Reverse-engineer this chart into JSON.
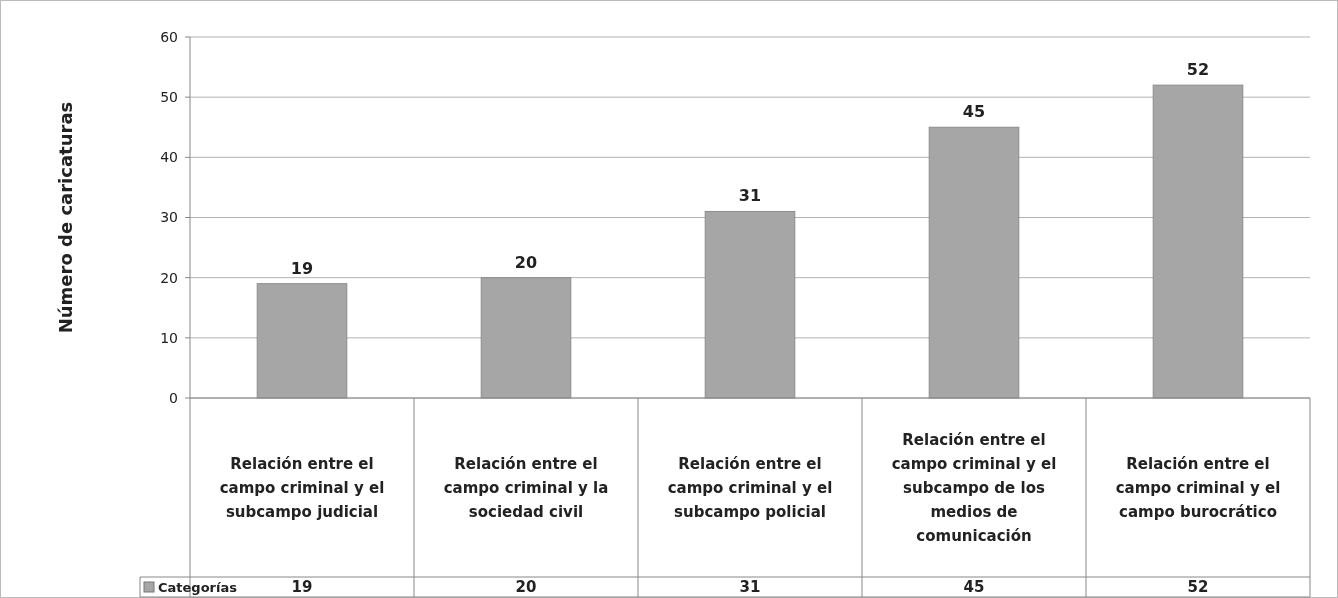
{
  "chart_data": {
    "type": "bar",
    "ylabel": "Número de caricaturas",
    "categories": [
      "Relación entre el campo criminal y el subcampo judicial",
      "Relación entre el campo criminal y la sociedad civil",
      "Relación entre el campo criminal y el subcampo policial",
      "Relación entre el campo criminal y el subcampo de los medios de comunicación",
      "Relación entre el campo criminal y el campo burocrático"
    ],
    "series": [
      {
        "name": "Categorías",
        "color": "#a6a6a6",
        "values": [
          19,
          20,
          31,
          45,
          52
        ]
      }
    ],
    "annotations": [
      "19",
      "20",
      "31",
      "45",
      "52"
    ],
    "ylim": [
      0,
      60
    ],
    "yticks": [
      0,
      10,
      20,
      30,
      40,
      50,
      60
    ],
    "grid": "y",
    "data_labels": true,
    "legend": "bottom"
  }
}
